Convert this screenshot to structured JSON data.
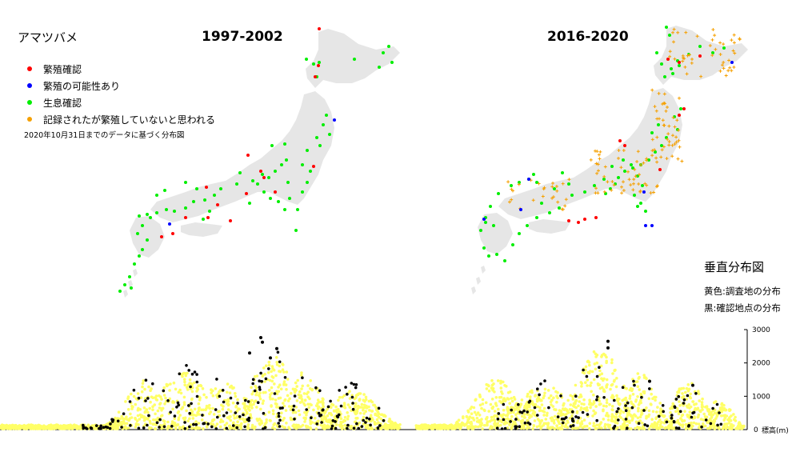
{
  "species": "アマツバメ",
  "periods": [
    {
      "title": "1997-2002"
    },
    {
      "title": "2016-2020"
    }
  ],
  "legend": {
    "items": [
      {
        "label": "繁殖確認",
        "color": "#ff0000"
      },
      {
        "label": "繁殖の可能性あり",
        "color": "#0000ff"
      },
      {
        "label": "生息確認",
        "color": "#00ee00"
      },
      {
        "label": "記録されたが繁殖していないと思われる",
        "color": "#f5a000"
      }
    ],
    "note": "2020年10月31日までのデータに基づく分布図"
  },
  "vertical": {
    "title": "垂直分布図",
    "yellow_label": "黄色:調査地の分布",
    "black_label": "黒:確認地点の分布",
    "axis_label": "標高(m)",
    "ticks": [
      0,
      1000,
      2000,
      3000
    ],
    "colors": {
      "surveyed": "#ffff66",
      "confirmed": "#000000"
    }
  },
  "map_colors": {
    "land": "#e6e6e6"
  }
}
